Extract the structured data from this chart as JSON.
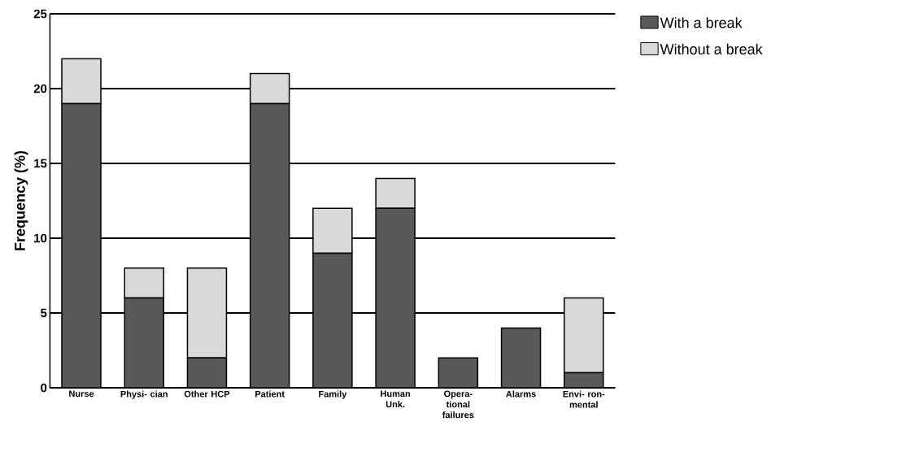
{
  "chart_data": {
    "type": "bar",
    "stacked": true,
    "ylabel": "Frequency (%)",
    "categories": [
      "Nurse",
      "Physi- cian",
      "Other HCP",
      "Patient",
      "Family",
      "Human Unk.",
      "Opera- tional failures",
      "Alarms",
      "Envi- ron- mental"
    ],
    "series": [
      {
        "name": "With a break",
        "color": "#595959",
        "values": [
          19,
          6,
          2,
          19,
          9,
          12,
          2,
          4,
          1
        ]
      },
      {
        "name": "Without a break",
        "color": "#d9d9d9",
        "values": [
          3,
          2,
          6,
          2,
          3,
          2,
          0,
          0,
          5
        ]
      }
    ],
    "ylim": [
      0,
      25
    ],
    "yticks": [
      0,
      5,
      10,
      15,
      20,
      25
    ],
    "grid": "y",
    "legend": "top right"
  }
}
